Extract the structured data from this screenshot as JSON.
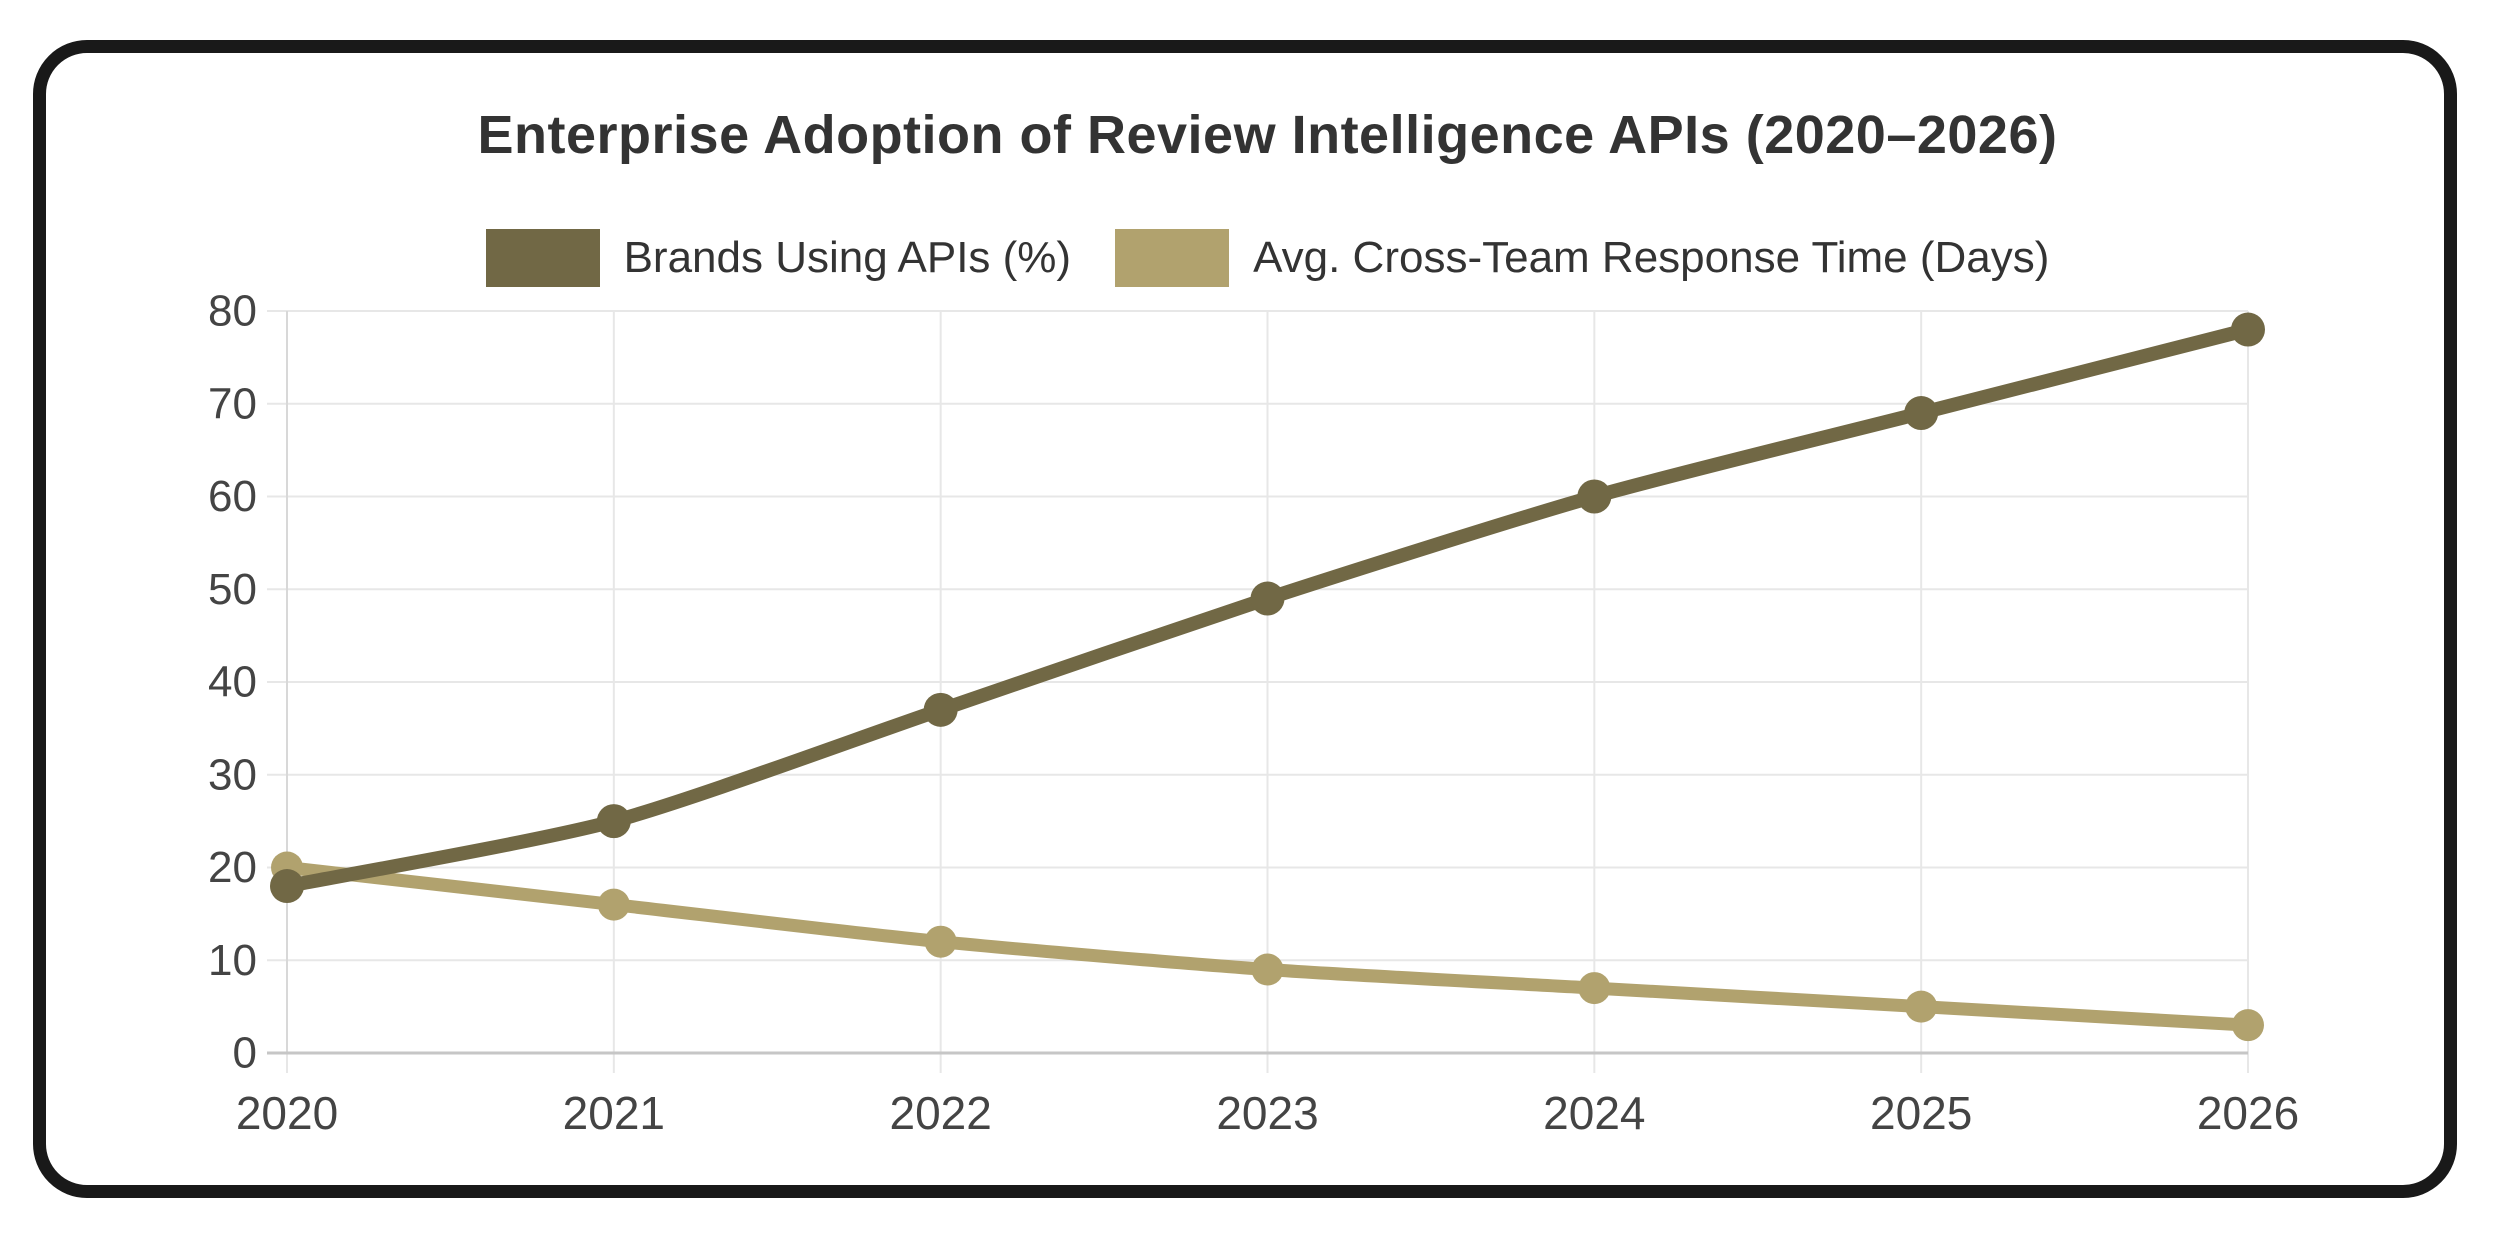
{
  "page": {
    "background": "#ffffff",
    "frame_color": "#191919"
  },
  "chart_data": {
    "type": "line",
    "title": "Enterprise Adoption of Review Intelligence APIs (2020–2026)",
    "categories": [
      "2020",
      "2021",
      "2022",
      "2023",
      "2024",
      "2025",
      "2026"
    ],
    "series": [
      {
        "name": "Brands Using APIs (%)",
        "color": "#716845",
        "values": [
          18,
          25,
          37,
          49,
          60,
          69,
          78
        ]
      },
      {
        "name": "Avg. Cross-Team Response Time (Days)",
        "color": "#b1a26e",
        "values": [
          20,
          16,
          12,
          9,
          7,
          5,
          3
        ]
      }
    ],
    "xlabel": "",
    "ylabel": "",
    "ylim": [
      0,
      80
    ],
    "ytick_step": 10,
    "yticks": [
      "0",
      "10",
      "20",
      "30",
      "40",
      "50",
      "60",
      "70",
      "80"
    ],
    "grid": true,
    "legend_position": "top",
    "line_tension": 0.35,
    "colors": {
      "grid_line": "#e7e7e7",
      "left_axis_line": "#d8d8d8",
      "bottom_axis_line": "#c6c6c6",
      "axis_text": "#444444",
      "title_text": "#333333",
      "legend_text": "#333333"
    }
  }
}
